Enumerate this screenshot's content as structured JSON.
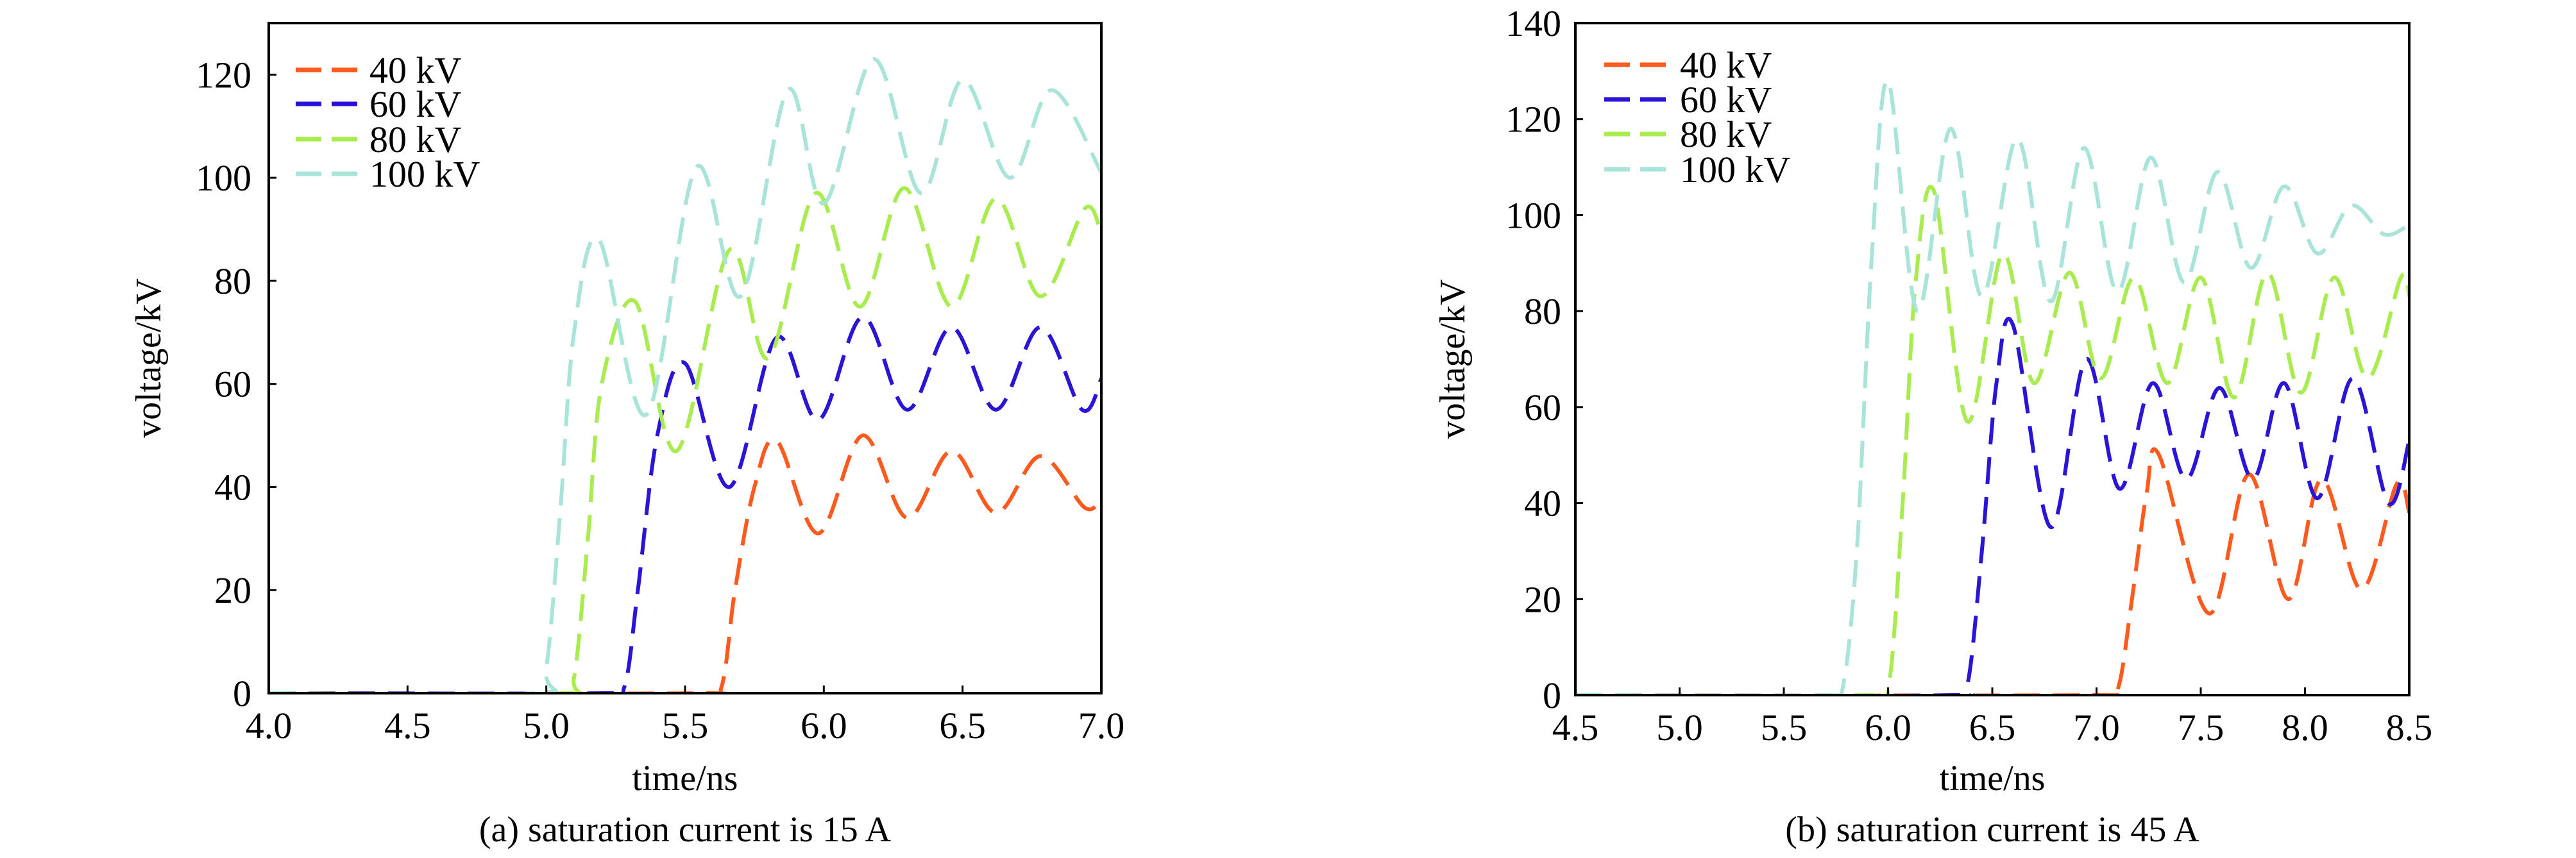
{
  "chart_data": [
    {
      "type": "line",
      "caption": "(a) saturation current is 15 A",
      "xlabel": "time/ns",
      "ylabel": "voltage/kV",
      "xlim": [
        4.0,
        7.0
      ],
      "ylim": [
        0,
        130
      ],
      "xticks": [
        "4.0",
        "4.5",
        "5.0",
        "5.5",
        "6.0",
        "6.5",
        "7.0"
      ],
      "yticks": [
        "0",
        "20",
        "40",
        "60",
        "80",
        "100",
        "120"
      ],
      "grid": false,
      "legend_position": "top-left",
      "series": [
        {
          "name": "40 kV",
          "color": "#ff5a1e",
          "points": [
            [
              4.0,
              0
            ],
            [
              5.55,
              0
            ],
            [
              5.63,
              1
            ],
            [
              5.68,
              20
            ],
            [
              5.75,
              40
            ],
            [
              5.83,
              49
            ],
            [
              5.98,
              31
            ],
            [
              6.14,
              50
            ],
            [
              6.3,
              34
            ],
            [
              6.46,
              47
            ],
            [
              6.62,
              35
            ],
            [
              6.78,
              46
            ],
            [
              6.94,
              36
            ],
            [
              7.0,
              38
            ]
          ]
        },
        {
          "name": "60 kV",
          "color": "#2a14d8",
          "points": [
            [
              4.0,
              0
            ],
            [
              5.2,
              0
            ],
            [
              5.28,
              1
            ],
            [
              5.33,
              20
            ],
            [
              5.4,
              50
            ],
            [
              5.5,
              64
            ],
            [
              5.66,
              40
            ],
            [
              5.83,
              69
            ],
            [
              5.98,
              53
            ],
            [
              6.14,
              73
            ],
            [
              6.3,
              55
            ],
            [
              6.46,
              71
            ],
            [
              6.62,
              55
            ],
            [
              6.78,
              71
            ],
            [
              6.93,
              55
            ],
            [
              7.0,
              61
            ]
          ]
        },
        {
          "name": "80 kV",
          "color": "#a8ec50",
          "points": [
            [
              4.0,
              0
            ],
            [
              5.05,
              0
            ],
            [
              5.1,
              3
            ],
            [
              5.15,
              30
            ],
            [
              5.2,
              60
            ],
            [
              5.32,
              76
            ],
            [
              5.47,
              47
            ],
            [
              5.66,
              86
            ],
            [
              5.8,
              65
            ],
            [
              5.97,
              97
            ],
            [
              6.13,
              75
            ],
            [
              6.29,
              98
            ],
            [
              6.46,
              75
            ],
            [
              6.62,
              96
            ],
            [
              6.78,
              77
            ],
            [
              6.94,
              94
            ],
            [
              7.0,
              89
            ]
          ]
        },
        {
          "name": "100 kV",
          "color": "#a8e4d8",
          "points": [
            [
              4.0,
              0
            ],
            [
              4.95,
              0
            ],
            [
              5.0,
              5
            ],
            [
              5.05,
              35
            ],
            [
              5.1,
              70
            ],
            [
              5.19,
              88
            ],
            [
              5.36,
              54
            ],
            [
              5.54,
              102
            ],
            [
              5.7,
              77
            ],
            [
              5.87,
              117
            ],
            [
              6.0,
              95
            ],
            [
              6.18,
              123
            ],
            [
              6.35,
              97
            ],
            [
              6.5,
              119
            ],
            [
              6.67,
              100
            ],
            [
              6.82,
              117
            ],
            [
              7.0,
              101
            ]
          ]
        }
      ]
    },
    {
      "type": "line",
      "caption": "(b) saturation current is 45 A",
      "xlabel": "time/ns",
      "ylabel": "voltage/kV",
      "xlim": [
        4.5,
        8.5
      ],
      "ylim": [
        0,
        140
      ],
      "xticks": [
        "4.5",
        "5.0",
        "5.5",
        "6.0",
        "6.5",
        "7.0",
        "7.5",
        "8.0",
        "8.5"
      ],
      "yticks": [
        "0",
        "20",
        "40",
        "60",
        "80",
        "100",
        "120",
        "140"
      ],
      "grid": false,
      "legend_position": "top-left",
      "series": [
        {
          "name": "40 kV",
          "color": "#ff5a1e",
          "points": [
            [
              4.5,
              0
            ],
            [
              7.0,
              0
            ],
            [
              7.1,
              1
            ],
            [
              7.17,
              20
            ],
            [
              7.24,
              42
            ],
            [
              7.3,
              50
            ],
            [
              7.54,
              17
            ],
            [
              7.73,
              46
            ],
            [
              7.92,
              20
            ],
            [
              8.08,
              45
            ],
            [
              8.27,
              22
            ],
            [
              8.44,
              44
            ],
            [
              8.5,
              38
            ]
          ]
        },
        {
          "name": "60 kV",
          "color": "#2a14d8",
          "points": [
            [
              4.5,
              0
            ],
            [
              6.3,
              0
            ],
            [
              6.38,
              2
            ],
            [
              6.45,
              30
            ],
            [
              6.52,
              65
            ],
            [
              6.6,
              77
            ],
            [
              6.78,
              35
            ],
            [
              6.95,
              70
            ],
            [
              7.11,
              43
            ],
            [
              7.27,
              65
            ],
            [
              7.43,
              45
            ],
            [
              7.59,
              64
            ],
            [
              7.75,
              45
            ],
            [
              7.9,
              65
            ],
            [
              8.06,
              41
            ],
            [
              8.23,
              66
            ],
            [
              8.4,
              40
            ],
            [
              8.5,
              53
            ]
          ]
        },
        {
          "name": "80 kV",
          "color": "#a8ec50",
          "points": [
            [
              4.5,
              0
            ],
            [
              5.9,
              0
            ],
            [
              6.0,
              1
            ],
            [
              6.07,
              40
            ],
            [
              6.13,
              85
            ],
            [
              6.22,
              105
            ],
            [
              6.38,
              57
            ],
            [
              6.55,
              92
            ],
            [
              6.7,
              65
            ],
            [
              6.87,
              88
            ],
            [
              7.02,
              66
            ],
            [
              7.18,
              87
            ],
            [
              7.34,
              65
            ],
            [
              7.5,
              87
            ],
            [
              7.66,
              62
            ],
            [
              7.82,
              88
            ],
            [
              7.98,
              63
            ],
            [
              8.14,
              87
            ],
            [
              8.3,
              66
            ],
            [
              8.46,
              87
            ],
            [
              8.5,
              83
            ]
          ]
        },
        {
          "name": "100 kV",
          "color": "#a8e4d8",
          "points": [
            [
              4.5,
              0
            ],
            [
              5.7,
              0
            ],
            [
              5.78,
              1
            ],
            [
              5.85,
              30
            ],
            [
              5.92,
              90
            ],
            [
              6.0,
              128
            ],
            [
              6.14,
              80
            ],
            [
              6.3,
              118
            ],
            [
              6.45,
              83
            ],
            [
              6.62,
              116
            ],
            [
              6.78,
              82
            ],
            [
              6.94,
              114
            ],
            [
              7.1,
              84
            ],
            [
              7.26,
              112
            ],
            [
              7.42,
              86
            ],
            [
              7.58,
              109
            ],
            [
              7.74,
              89
            ],
            [
              7.9,
              106
            ],
            [
              8.06,
              92
            ],
            [
              8.22,
              102
            ],
            [
              8.38,
              96
            ],
            [
              8.5,
              98
            ]
          ]
        }
      ]
    }
  ]
}
